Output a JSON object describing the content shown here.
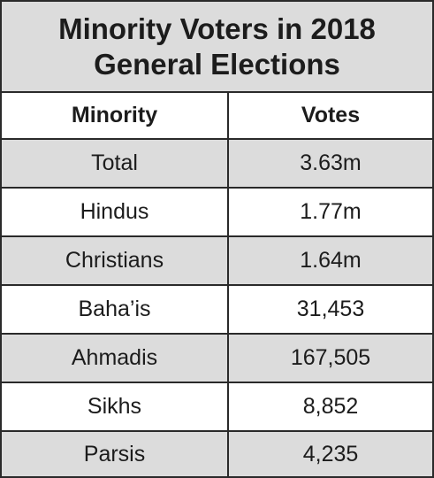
{
  "title": {
    "line1": "Minority Voters in 2018",
    "line2": "General Elections"
  },
  "table": {
    "headers": [
      "Minority",
      "Votes"
    ],
    "rows": [
      [
        "Total",
        "3.63m"
      ],
      [
        "Hindus",
        "1.77m"
      ],
      [
        "Christians",
        "1.64m"
      ],
      [
        "Baha’is",
        "31,453"
      ],
      [
        "Ahmadis",
        "167,505"
      ],
      [
        "Sikhs",
        "8,852"
      ],
      [
        "Parsis",
        "4,235"
      ]
    ]
  },
  "colors": {
    "shade": "#dcdcdc",
    "border": "#2a2a2a",
    "text": "#1c1c1c"
  }
}
